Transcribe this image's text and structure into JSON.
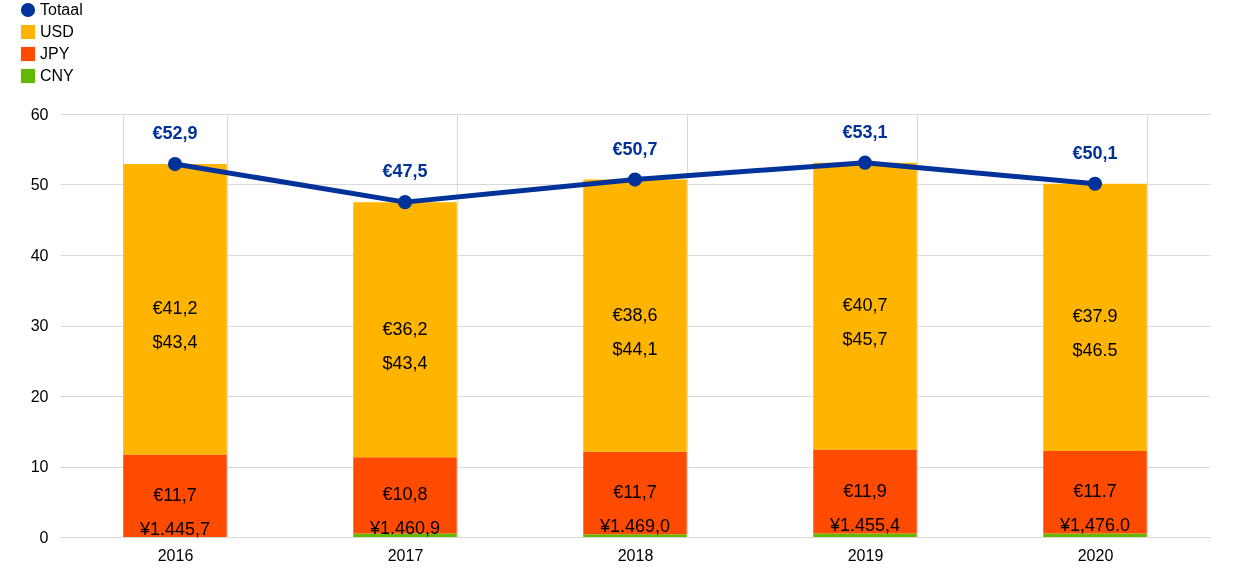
{
  "chart_data": {
    "type": "bar",
    "stacked": true,
    "categories": [
      "2016",
      "2017",
      "2018",
      "2019",
      "2020"
    ],
    "series": [
      {
        "name": "CNY",
        "color": "#65b800",
        "values": [
          0,
          0.5,
          0.4,
          0.5,
          0.5
        ]
      },
      {
        "name": "JPY",
        "color": "#ff4b00",
        "values": [
          11.7,
          10.8,
          11.7,
          11.9,
          11.7
        ],
        "value_labels": [
          "€11,7\n¥1.445,7",
          "€10,8\n¥1.460,9",
          "€11,7\n¥1.469,0",
          "€11,9\n¥1.455,4",
          "€11.7\n¥1,476.0"
        ]
      },
      {
        "name": "USD",
        "color": "#ffb400",
        "values": [
          41.2,
          36.2,
          38.6,
          40.7,
          37.9
        ],
        "value_labels": [
          "€41,2\n$43,4",
          "€36,2\n$43,4",
          "€38,6\n$44,1",
          "€40,7\n$45,7",
          "€37.9\n$46.5"
        ]
      },
      {
        "name": "Totaal",
        "type": "line",
        "color": "#003299",
        "values": [
          52.9,
          47.5,
          50.7,
          53.1,
          50.1
        ],
        "value_labels": [
          "€52,9",
          "€47,5",
          "€50,7",
          "€53,1",
          "€50,1"
        ]
      }
    ],
    "ylim": [
      0,
      60
    ],
    "yticks": [
      0,
      10,
      20,
      30,
      40,
      50,
      60
    ],
    "grid": true,
    "legend": "top left",
    "marker": "circle"
  }
}
